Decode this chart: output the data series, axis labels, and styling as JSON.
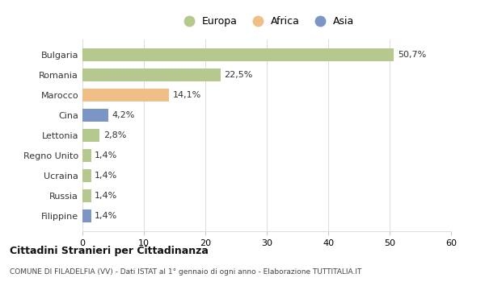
{
  "categories": [
    "Bulgaria",
    "Romania",
    "Marocco",
    "Cina",
    "Lettonia",
    "Regno Unito",
    "Ucraina",
    "Russia",
    "Filippine"
  ],
  "values": [
    50.7,
    22.5,
    14.1,
    4.2,
    2.8,
    1.4,
    1.4,
    1.4,
    1.4
  ],
  "labels": [
    "50,7%",
    "22,5%",
    "14,1%",
    "4,2%",
    "2,8%",
    "1,4%",
    "1,4%",
    "1,4%",
    "1,4%"
  ],
  "bar_colors": [
    "#b5c98e",
    "#b5c98e",
    "#f0bf88",
    "#7b96c4",
    "#b5c98e",
    "#b5c98e",
    "#b5c98e",
    "#b5c98e",
    "#7b96c4"
  ],
  "legend_labels": [
    "Europa",
    "Africa",
    "Asia"
  ],
  "legend_colors": [
    "#b5c98e",
    "#f0bf88",
    "#7b96c4"
  ],
  "title_main": "Cittadini Stranieri per Cittadinanza",
  "title_sub": "COMUNE DI FILADELFIA (VV) - Dati ISTAT al 1° gennaio di ogni anno - Elaborazione TUTTITALIA.IT",
  "xlim": [
    0,
    60
  ],
  "xticks": [
    0,
    10,
    20,
    30,
    40,
    50,
    60
  ],
  "background_color": "#ffffff",
  "grid_color": "#dddddd"
}
